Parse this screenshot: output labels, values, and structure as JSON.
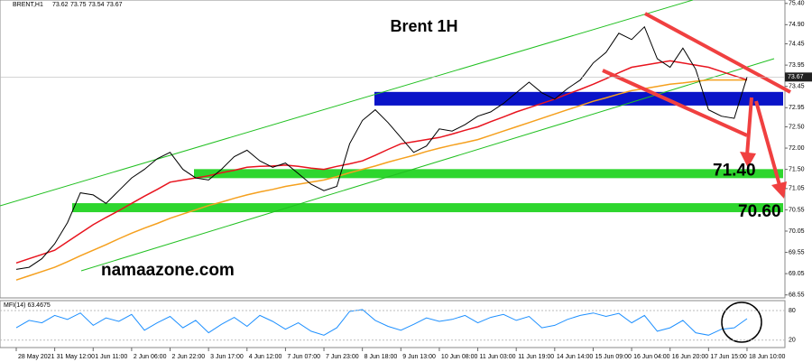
{
  "chart_data": {
    "type": "line",
    "symbol": "BRENT,H1",
    "ohlc": [
      73.62,
      73.75,
      73.54,
      73.67
    ],
    "title": "Brent 1H",
    "watermark": "namaazone.com",
    "categories": [
      "28 May 2021",
      null,
      null,
      "31 May 12:00",
      null,
      null,
      "1 Jun 11:00",
      null,
      null,
      "2 Jun 06:00",
      null,
      null,
      "2 Jun 22:00",
      null,
      null,
      "3 Jun 17:00",
      null,
      null,
      "4 Jun 12:00",
      null,
      null,
      "7 Jun 07:00",
      null,
      null,
      "7 Jun 23:00",
      null,
      null,
      "8 Jun 18:00",
      null,
      null,
      "9 Jun 13:00",
      null,
      null,
      "10 Jun 08:00",
      null,
      null,
      "11 Jun 03:00",
      null,
      null,
      "11 Jun 19:00",
      null,
      null,
      "14 Jun 14:00",
      null,
      null,
      "15 Jun 09:00",
      null,
      null,
      "16 Jun 04:00",
      null,
      null,
      "16 Jun 20:00",
      null,
      null,
      "17 Jun 15:00",
      null,
      null,
      "18 Jun 10:00"
    ],
    "series": [
      {
        "color": "#000000",
        "values": [
          69.15,
          69.2,
          69.4,
          69.75,
          70.25,
          70.95,
          70.9,
          70.7,
          71.0,
          71.3,
          71.5,
          71.75,
          71.9,
          71.5,
          71.3,
          71.25,
          71.5,
          71.8,
          71.95,
          71.7,
          71.55,
          71.65,
          71.4,
          71.15,
          71.0,
          71.1,
          72.1,
          72.65,
          72.9,
          72.6,
          72.25,
          71.9,
          72.05,
          72.45,
          72.4,
          72.55,
          72.75,
          72.85,
          73.05,
          73.3,
          73.55,
          73.3,
          73.15,
          73.4,
          73.6,
          74.0,
          74.25,
          74.7,
          74.55,
          74.85,
          74.1,
          73.9,
          74.35,
          73.85,
          72.9,
          72.75,
          72.7,
          73.67
        ]
      },
      {
        "color": "#e8141e",
        "values": [
          69.3,
          69.4,
          69.5,
          69.6,
          69.8,
          70.0,
          70.2,
          70.37,
          70.53,
          70.7,
          70.87,
          71.03,
          71.2,
          71.25,
          71.3,
          71.35,
          71.42,
          71.48,
          71.55,
          71.57,
          71.58,
          71.6,
          71.57,
          71.53,
          71.5,
          71.57,
          71.63,
          71.7,
          71.83,
          71.97,
          72.1,
          72.15,
          72.2,
          72.25,
          72.33,
          72.42,
          72.5,
          72.62,
          72.73,
          72.85,
          72.95,
          73.05,
          73.15,
          73.27,
          73.38,
          73.5,
          73.63,
          73.77,
          73.9,
          73.95,
          74.0,
          74.05,
          74.0,
          73.95,
          73.9,
          73.8,
          73.7,
          73.6
        ]
      },
      {
        "color": "#f5a01e",
        "values": [
          68.9,
          69.0,
          69.1,
          69.2,
          69.33,
          69.47,
          69.6,
          69.73,
          69.87,
          70.0,
          70.12,
          70.23,
          70.35,
          70.45,
          70.55,
          70.65,
          70.73,
          70.82,
          70.9,
          70.97,
          71.03,
          71.1,
          71.15,
          71.2,
          71.25,
          71.33,
          71.42,
          71.5,
          71.58,
          71.67,
          71.75,
          71.83,
          71.92,
          72.0,
          72.07,
          72.13,
          72.2,
          72.3,
          72.4,
          72.5,
          72.6,
          72.7,
          72.8,
          72.9,
          73.0,
          73.1,
          73.18,
          73.27,
          73.35,
          73.4,
          73.45,
          73.5,
          73.53,
          73.57,
          73.6,
          73.6,
          73.6,
          73.6
        ]
      }
    ],
    "ylim": [
      68.48,
      75.48
    ],
    "yticks": [
      {
        "value": 75.4,
        "label": "75.40"
      },
      {
        "value": 74.9,
        "label": "74.90"
      },
      74.45,
      73.95,
      73.45,
      72.95,
      {
        "value": 72.5,
        "label": "72.50"
      },
      {
        "value": 72.0,
        "label": "72.00"
      },
      {
        "value": 71.5,
        "label": "71.50"
      },
      71.05,
      70.55,
      70.05,
      69.55,
      69.05,
      68.55
    ],
    "zone": [
      73.0,
      73.32
    ],
    "zone_color": "#0a14c8",
    "levels": [
      {
        "value": 71.4,
        "label": "71.40"
      },
      {
        "value": 70.6,
        "label": "70.60"
      }
    ],
    "level_color": "#2ed62e",
    "mfi": {
      "name": "MFI(14) 63.4675",
      "color": "#1e90ff",
      "values": [
        45,
        60,
        55,
        70,
        62,
        75,
        50,
        65,
        58,
        72,
        40,
        55,
        68,
        45,
        60,
        35,
        52,
        66,
        48,
        70,
        58,
        42,
        55,
        38,
        30,
        45,
        78,
        82,
        60,
        48,
        40,
        52,
        65,
        58,
        62,
        70,
        55,
        66,
        72,
        60,
        68,
        45,
        50,
        62,
        70,
        75,
        68,
        74,
        55,
        70,
        38,
        45,
        60,
        35,
        30,
        42,
        45,
        63.4675
      ],
      "ylim": [
        5,
        100
      ],
      "yticks": [
        80,
        20
      ]
    }
  }
}
